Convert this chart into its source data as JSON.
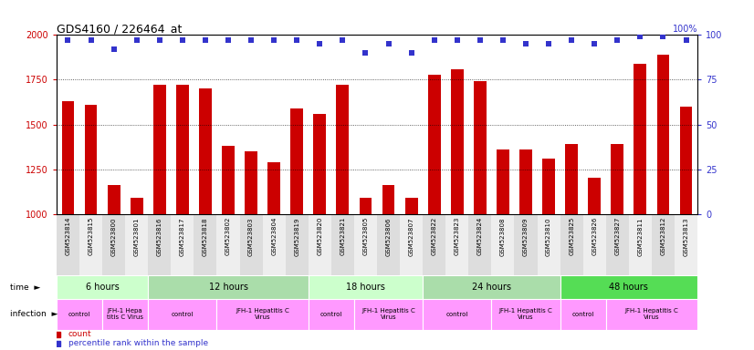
{
  "title": "GDS4160 / 226464_at",
  "samples": [
    "GSM523814",
    "GSM523815",
    "GSM523800",
    "GSM523801",
    "GSM523816",
    "GSM523817",
    "GSM523818",
    "GSM523802",
    "GSM523803",
    "GSM523804",
    "GSM523819",
    "GSM523820",
    "GSM523821",
    "GSM523805",
    "GSM523806",
    "GSM523807",
    "GSM523822",
    "GSM523823",
    "GSM523824",
    "GSM523808",
    "GSM523809",
    "GSM523810",
    "GSM523825",
    "GSM523826",
    "GSM523827",
    "GSM523811",
    "GSM523812",
    "GSM523813"
  ],
  "counts": [
    1630,
    1610,
    1160,
    1090,
    1720,
    1720,
    1700,
    1380,
    1350,
    1290,
    1590,
    1560,
    1720,
    1090,
    1160,
    1090,
    1780,
    1810,
    1740,
    1360,
    1360,
    1310,
    1390,
    1200,
    1390,
    1840,
    1890,
    1600
  ],
  "percentile_ranks": [
    97,
    97,
    92,
    97,
    97,
    97,
    97,
    97,
    97,
    97,
    97,
    95,
    97,
    90,
    95,
    90,
    97,
    97,
    97,
    97,
    95,
    95,
    97,
    95,
    97,
    99,
    99,
    97
  ],
  "bar_color": "#cc0000",
  "dot_color": "#3333cc",
  "ylim_left": [
    1000,
    2000
  ],
  "ylim_right": [
    0,
    100
  ],
  "yticks_left": [
    1000,
    1250,
    1500,
    1750,
    2000
  ],
  "yticks_right": [
    0,
    25,
    50,
    75,
    100
  ],
  "time_groups": [
    {
      "label": "6 hours",
      "start": 0,
      "end": 4,
      "color": "#ccffcc"
    },
    {
      "label": "12 hours",
      "start": 4,
      "end": 11,
      "color": "#aaddaa"
    },
    {
      "label": "18 hours",
      "start": 11,
      "end": 16,
      "color": "#ccffcc"
    },
    {
      "label": "24 hours",
      "start": 16,
      "end": 22,
      "color": "#aaddaa"
    },
    {
      "label": "48 hours",
      "start": 22,
      "end": 28,
      "color": "#55dd55"
    }
  ],
  "infection_groups": [
    {
      "label": "control",
      "start": 0,
      "end": 2
    },
    {
      "label": "JFH-1 Hepa\ntitis C Virus",
      "start": 2,
      "end": 4
    },
    {
      "label": "control",
      "start": 4,
      "end": 7
    },
    {
      "label": "JFH-1 Hepatitis C\nVirus",
      "start": 7,
      "end": 11
    },
    {
      "label": "control",
      "start": 11,
      "end": 13
    },
    {
      "label": "JFH-1 Hepatitis C\nVirus",
      "start": 13,
      "end": 16
    },
    {
      "label": "control",
      "start": 16,
      "end": 19
    },
    {
      "label": "JFH-1 Hepatitis C\nVirus",
      "start": 19,
      "end": 22
    },
    {
      "label": "control",
      "start": 22,
      "end": 24
    },
    {
      "label": "JFH-1 Hepatitis C\nVirus",
      "start": 24,
      "end": 28
    }
  ],
  "infect_color": "#ff99ff",
  "legend_count_color": "#cc0000",
  "legend_dot_color": "#3333cc",
  "bg_color": "#ffffff"
}
